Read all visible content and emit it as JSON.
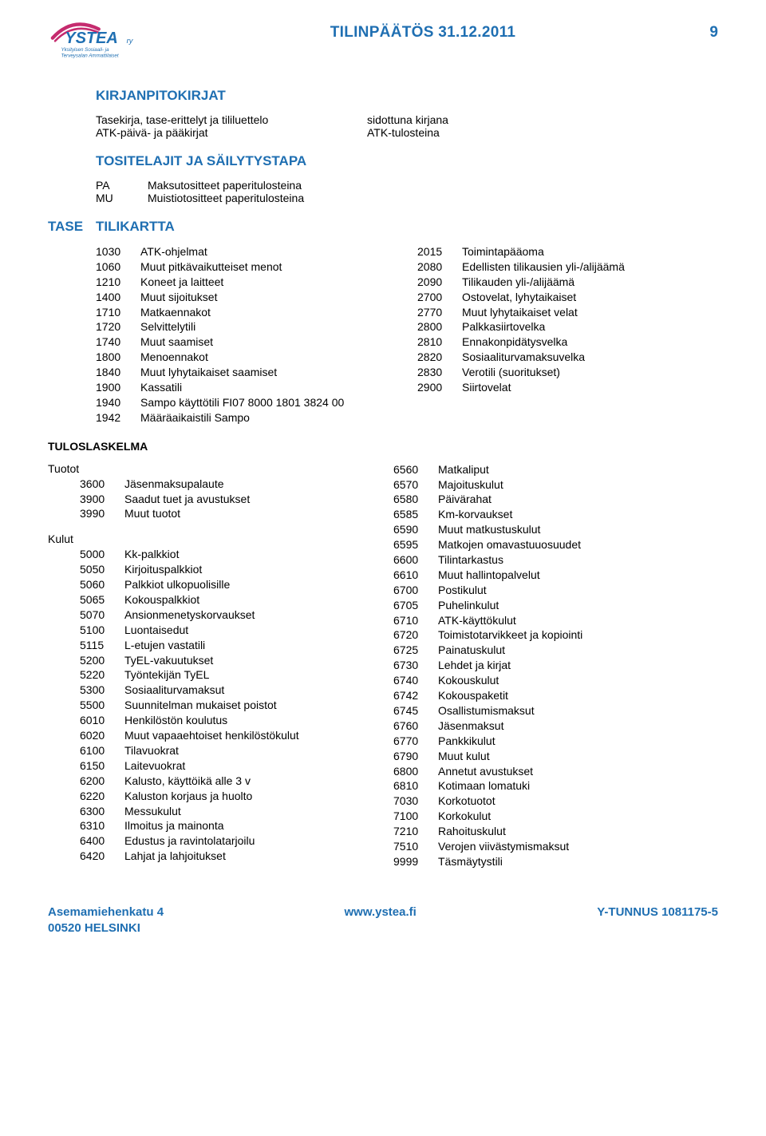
{
  "header": {
    "title": "TILINPÄÄTÖS 31.12.2011",
    "page_number": "9"
  },
  "logo": {
    "main_text": "YSTEA",
    "suffix": "ry",
    "subtitle1": "Yksityisen Sosiaali- ja",
    "subtitle2": "Terveysalan Ammattilaiset",
    "curve_color": "#c52b6e",
    "text_color": "#1f6fb2",
    "subtitle_color": "#1f6fb2"
  },
  "kirjanpito": {
    "heading": "KIRJANPITOKIRJAT",
    "lines": [
      {
        "left": "Tasekirja, tase-erittelyt ja tililuettelo",
        "right": "sidottuna kirjana"
      },
      {
        "left": "ATK-päivä- ja pääkirjat",
        "right": "ATK-tulosteina"
      }
    ]
  },
  "tositelajit": {
    "heading": "TOSITELAJIT JA SÄILYTYSTAPA",
    "lines": [
      {
        "abbr": "PA",
        "desc": "Maksutositteet paperitulosteina"
      },
      {
        "abbr": "MU",
        "desc": "Muistiotositteet paperitulosteina"
      }
    ]
  },
  "tilikartta": {
    "tase_label": "TASE",
    "heading": "TILIKARTTA",
    "left": [
      {
        "code": "1030",
        "label": "ATK-ohjelmat"
      },
      {
        "code": "1060",
        "label": "Muut pitkävaikutteiset menot"
      },
      {
        "code": "1210",
        "label": "Koneet ja laitteet"
      },
      {
        "code": "1400",
        "label": "Muut sijoitukset"
      },
      {
        "code": "1710",
        "label": "Matkaennakot"
      },
      {
        "code": "1720",
        "label": "Selvittelytili"
      },
      {
        "code": "1740",
        "label": "Muut saamiset"
      },
      {
        "code": "1800",
        "label": "Menoennakot"
      },
      {
        "code": "1840",
        "label": "Muut lyhytaikaiset saamiset"
      },
      {
        "code": "1900",
        "label": "Kassatili"
      },
      {
        "code": "1940",
        "label": "Sampo käyttötili FI07 8000 1801 3824 00"
      },
      {
        "code": "1942",
        "label": "Määräaikaistili Sampo"
      }
    ],
    "right": [
      {
        "code": "2015",
        "label": "Toimintapääoma"
      },
      {
        "code": "2080",
        "label": "Edellisten tilikausien yli-/alijäämä"
      },
      {
        "code": "2090",
        "label": "Tilikauden yli-/alijäämä"
      },
      {
        "code": "2700",
        "label": "Ostovelat, lyhytaikaiset"
      },
      {
        "code": "2770",
        "label": "Muut lyhytaikaiset velat"
      },
      {
        "code": "2800",
        "label": "Palkkasiirtovelka"
      },
      {
        "code": "2810",
        "label": "Ennakonpidätysvelka"
      },
      {
        "code": "2820",
        "label": "Sosiaaliturvamaksuvelka"
      },
      {
        "code": "2830",
        "label": "Verotili (suoritukset)"
      },
      {
        "code": "2900",
        "label": "Siirtovelat"
      }
    ]
  },
  "tuloslaskelma": {
    "heading": "TULOSLASKELMA",
    "tuotot_label": "Tuotot",
    "kulut_label": "Kulut",
    "tuotot": [
      {
        "code": "3600",
        "label": "Jäsenmaksupalaute"
      },
      {
        "code": "3900",
        "label": "Saadut tuet ja avustukset"
      },
      {
        "code": "3990",
        "label": "Muut tuotot"
      }
    ],
    "kulut": [
      {
        "code": "5000",
        "label": "Kk-palkkiot"
      },
      {
        "code": "5050",
        "label": "Kirjoituspalkkiot"
      },
      {
        "code": "5060",
        "label": "Palkkiot ulkopuolisille"
      },
      {
        "code": "5065",
        "label": "Kokouspalkkiot"
      },
      {
        "code": "5070",
        "label": "Ansionmenetyskorvaukset"
      },
      {
        "code": "5100",
        "label": "Luontaisedut"
      },
      {
        "code": "5115",
        "label": "L-etujen vastatili"
      },
      {
        "code": "5200",
        "label": "TyEL-vakuutukset"
      },
      {
        "code": "5220",
        "label": "Työntekijän TyEL"
      },
      {
        "code": "5300",
        "label": "Sosiaaliturvamaksut"
      },
      {
        "code": "5500",
        "label": "Suunnitelman mukaiset poistot"
      },
      {
        "code": "6010",
        "label": "Henkilöstön koulutus"
      },
      {
        "code": "6020",
        "label": "Muut vapaaehtoiset henkilöstökulut"
      },
      {
        "code": "6100",
        "label": "Tilavuokrat"
      },
      {
        "code": "6150",
        "label": "Laitevuokrat"
      },
      {
        "code": "6200",
        "label": "Kalusto, käyttöikä alle 3 v"
      },
      {
        "code": "6220",
        "label": "Kaluston korjaus ja huolto"
      },
      {
        "code": "6300",
        "label": "Messukulut"
      },
      {
        "code": "6310",
        "label": "Ilmoitus ja mainonta"
      },
      {
        "code": "6400",
        "label": "Edustus ja ravintolatarjoilu"
      },
      {
        "code": "6420",
        "label": "Lahjat ja lahjoitukset"
      }
    ],
    "right": [
      {
        "code": "6560",
        "label": "Matkaliput"
      },
      {
        "code": "6570",
        "label": "Majoituskulut"
      },
      {
        "code": "6580",
        "label": "Päivärahat"
      },
      {
        "code": "6585",
        "label": "Km-korvaukset"
      },
      {
        "code": "6590",
        "label": "Muut matkustuskulut"
      },
      {
        "code": "6595",
        "label": "Matkojen omavastuuosuudet"
      },
      {
        "code": "6600",
        "label": "Tilintarkastus"
      },
      {
        "code": "6610",
        "label": "Muut hallintopalvelut"
      },
      {
        "code": "6700",
        "label": "Postikulut"
      },
      {
        "code": "6705",
        "label": "Puhelinkulut"
      },
      {
        "code": "6710",
        "label": "ATK-käyttökulut"
      },
      {
        "code": "6720",
        "label": "Toimistotarvikkeet ja kopiointi"
      },
      {
        "code": "6725",
        "label": "Painatuskulut"
      },
      {
        "code": "6730",
        "label": "Lehdet ja kirjat"
      },
      {
        "code": "6740",
        "label": "Kokouskulut"
      },
      {
        "code": "6742",
        "label": "Kokouspaketit"
      },
      {
        "code": "6745",
        "label": "Osallistumismaksut"
      },
      {
        "code": "6760",
        "label": "Jäsenmaksut"
      },
      {
        "code": "6770",
        "label": "Pankkikulut"
      },
      {
        "code": "6790",
        "label": "Muut kulut"
      },
      {
        "code": "6800",
        "label": "Annetut avustukset"
      },
      {
        "code": "6810",
        "label": "Kotimaan lomatuki"
      },
      {
        "code": "7030",
        "label": "Korkotuotot"
      },
      {
        "code": "7100",
        "label": "Korkokulut"
      },
      {
        "code": "7210",
        "label": "Rahoituskulut"
      },
      {
        "code": "7510",
        "label": "Verojen viivästymismaksut"
      },
      {
        "code": "9999",
        "label": "Täsmäytystili"
      }
    ]
  },
  "footer": {
    "left1": "Asemamiehenkatu 4",
    "left2": "00520 HELSINKI",
    "center": "www.ystea.fi",
    "right": "Y-TUNNUS 1081175-5"
  }
}
